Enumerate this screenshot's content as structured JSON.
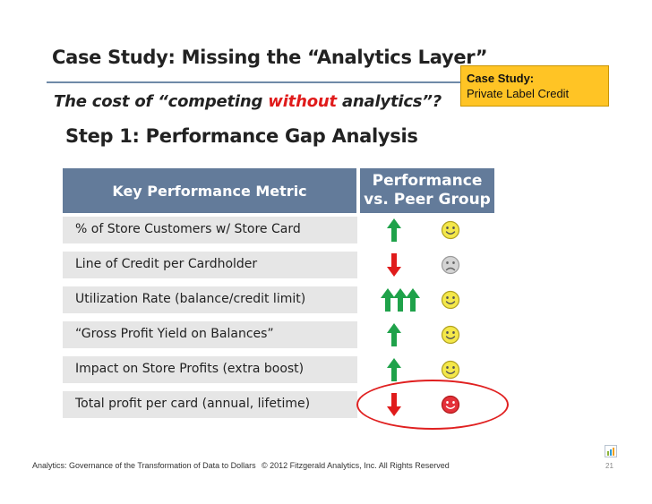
{
  "slide": {
    "title": "Case Study: Missing the “Analytics Layer”",
    "subtitle_pre": "The cost of “competing ",
    "subtitle_emphasis": "without",
    "subtitle_post": " analytics”?",
    "case_box": {
      "line1": "Case Study:",
      "line2": "Private Label Credit"
    },
    "step_heading": "Step 1: Performance Gap Analysis"
  },
  "table": {
    "header_metric": "Key Performance Metric",
    "header_perf_line1": "Performance",
    "header_perf_line2": "vs. Peer Group",
    "rows": [
      {
        "metric": "% of Store Customers w/ Store Card",
        "arrow": "up",
        "arrow_count": 1,
        "face": "happy"
      },
      {
        "metric": "Line of Credit per Cardholder",
        "arrow": "down",
        "arrow_count": 1,
        "face": "sad"
      },
      {
        "metric": "Utilization Rate (balance/credit limit)",
        "arrow": "up",
        "arrow_count": 3,
        "face": "happy"
      },
      {
        "metric": "“Gross Profit Yield on Balances”",
        "arrow": "up",
        "arrow_count": 1,
        "face": "happy"
      },
      {
        "metric": "Impact on Store Profits (extra boost)",
        "arrow": "up",
        "arrow_count": 1,
        "face": "happy"
      },
      {
        "metric": "Total profit per card (annual, lifetime)",
        "arrow": "down",
        "arrow_count": 1,
        "face": "happy-red"
      }
    ]
  },
  "footer": {
    "left": "Analytics: Governance of the Transformation of Data to Dollars",
    "center": "© 2012 Fitzgerald Analytics, Inc. All Rights Reserved",
    "page_number": "21"
  },
  "colors": {
    "header_bg": "#637b9a",
    "row_bg": "#e6e6e6",
    "up_arrow": "#1fa24a",
    "down_arrow": "#e01b1b",
    "smiley_yellow": "#f4e84a",
    "smiley_grey": "#d4d4d4",
    "smiley_red": "#e4313a",
    "case_box_bg": "#ffc425"
  },
  "icons": {
    "up_arrow": "arrow-up-icon",
    "down_arrow": "arrow-down-icon",
    "happy": "smiley-face-icon",
    "sad": "frown-face-icon",
    "logo": "bar-chart-logo-icon"
  }
}
